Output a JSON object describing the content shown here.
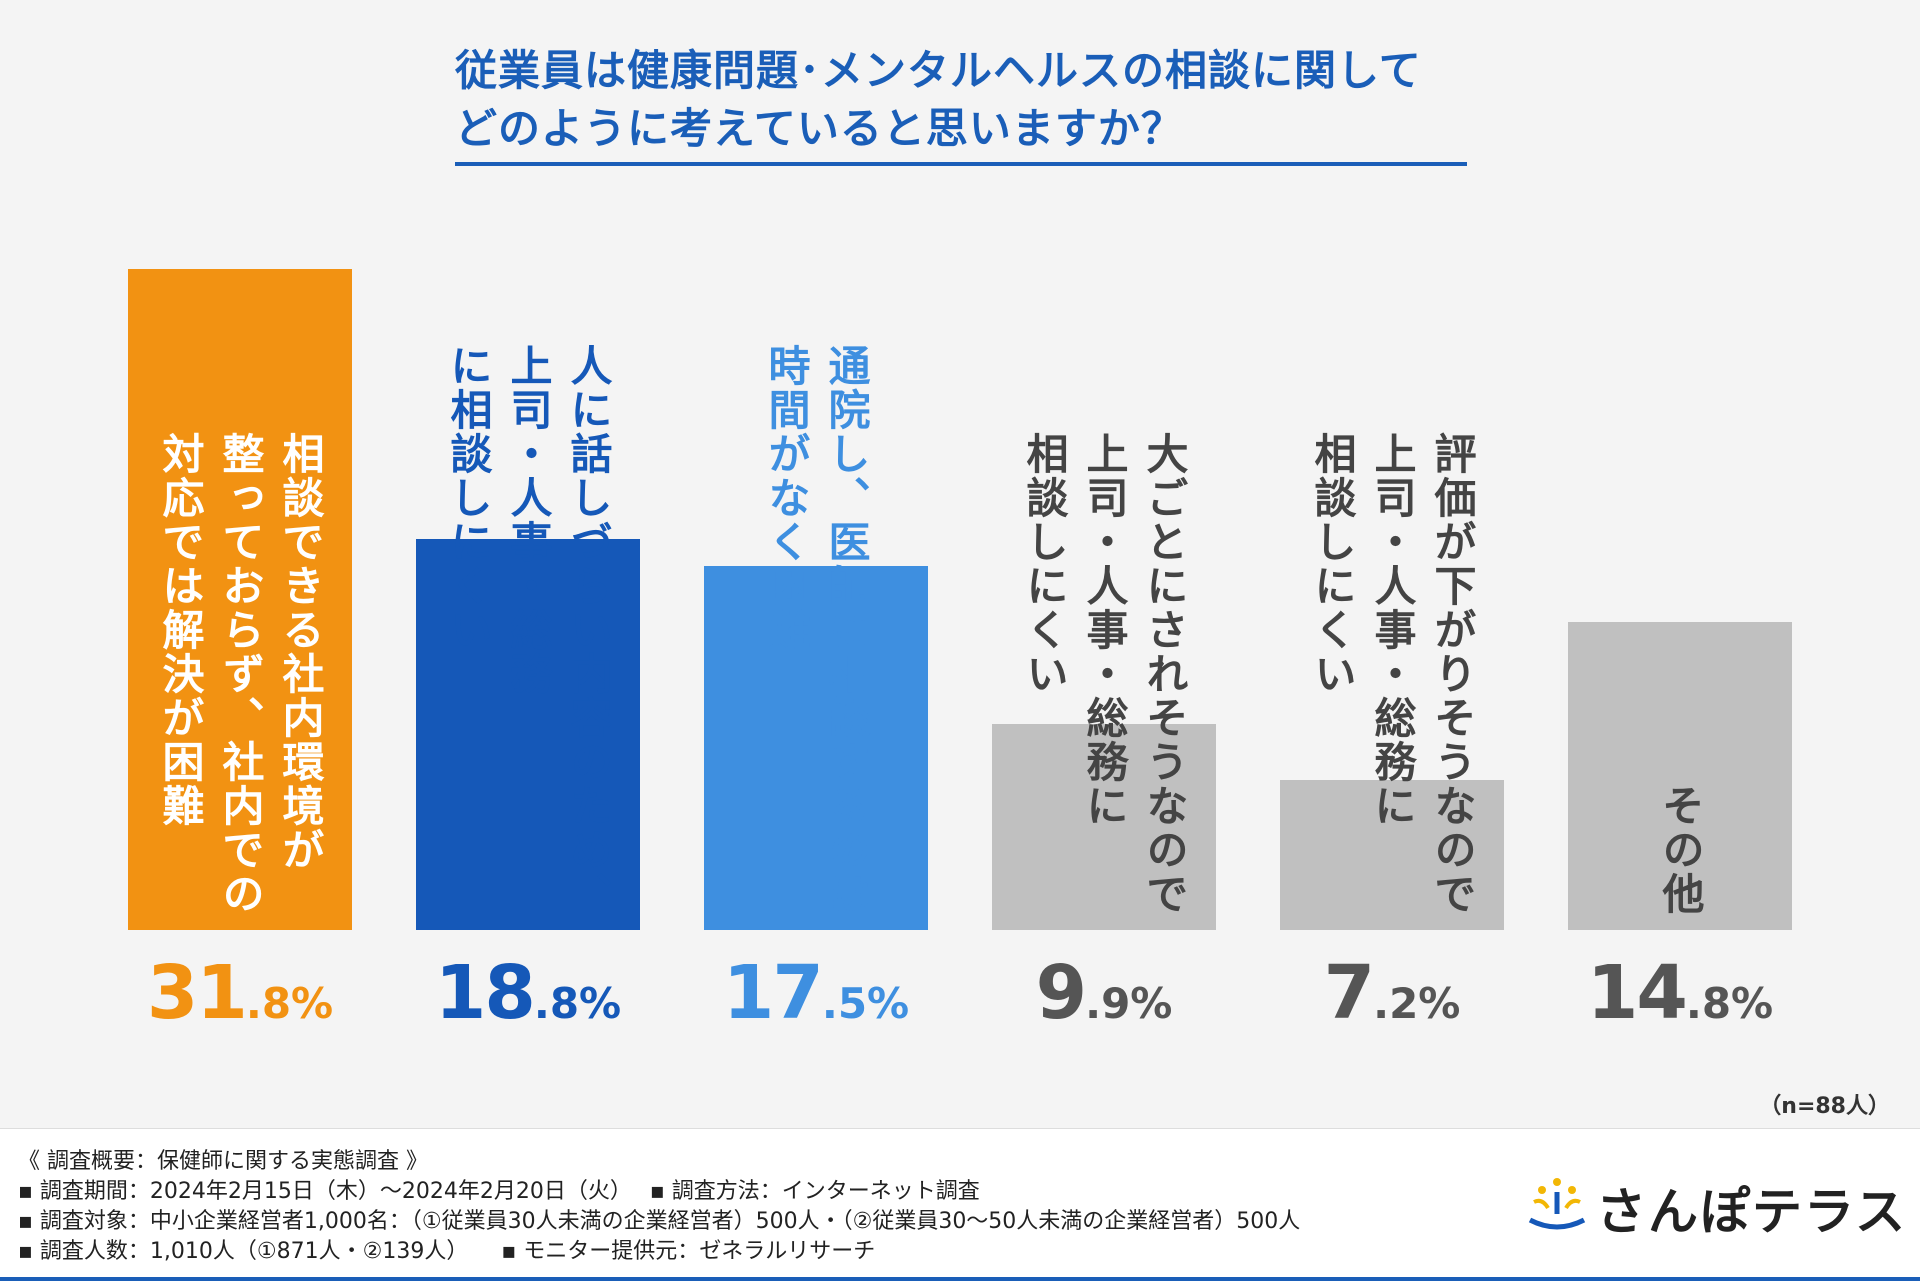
{
  "title": {
    "line1": "従業員は健康問題･メンタルヘルスの相談に関して",
    "line2": "どのように考えていると思いますか？"
  },
  "colors": {
    "title": "#1a5eb8",
    "orange": "#f29212",
    "dark_blue": "#1558b8",
    "light_blue": "#3e8fe0",
    "gray": "#c0c0c0"
  },
  "chart_data": {
    "type": "bar",
    "title": "従業員は健康問題･メンタルヘルスの相談に関して どのように考えていると思いますか？",
    "categories": [
      "相談できる社内環境が整っておらず、社内での対応では解決が困難",
      "人に話しづらい内容のため、上司・人事・総務に相談しにくい",
      "通院し、医師に相談するのは時間がなく困難",
      "大ごとにされそうなので上司・人事・総務に相談しにくい",
      "評価が下がりそうなので上司・人事・総務に相談しにくい",
      "その他"
    ],
    "values": [
      31.8,
      18.8,
      17.5,
      9.9,
      7.2,
      14.8
    ],
    "unit": "%",
    "xlabel": "",
    "ylabel": "",
    "ylim": [
      0,
      32
    ],
    "grid": false,
    "bars": [
      {
        "label_columns": [
          "相談できる社内環境が",
          "整っておらず、社内での",
          "対応では解決が困難"
        ],
        "big": "31",
        "small": ".8%",
        "color": "#f29212",
        "text_color": "#ffffff",
        "pct_color": "#f29212"
      },
      {
        "label_columns": [
          "人に話しづらい内容のため、",
          "上司・人事・総務",
          "に相談しにくい"
        ],
        "big": "18",
        "small": ".8%",
        "color": "#1558b8",
        "text_color": "#1558b8",
        "pct_color": "#1558b8"
      },
      {
        "label_columns": [
          "通院し、医師に相談するのは",
          "時間がなく困難"
        ],
        "big": "17",
        "small": ".5%",
        "color": "#3e8fe0",
        "text_color": "#3e8fe0",
        "pct_color": "#3e8fe0"
      },
      {
        "label_columns": [
          "大ごとにされそうなので",
          "上司・人事・総務に",
          "相談しにくい"
        ],
        "big": "9",
        "small": ".9%",
        "color": "#c0c0c0",
        "text_color": "#444444",
        "pct_color": "#555555"
      },
      {
        "label_columns": [
          "評価が下がりそうなので",
          "上司・人事・総務に",
          "相談しにくい"
        ],
        "big": "7",
        "small": ".2%",
        "color": "#c0c0c0",
        "text_color": "#444444",
        "pct_color": "#555555"
      },
      {
        "label_columns": [
          "その他"
        ],
        "big": "14",
        "small": ".8%",
        "color": "#c0c0c0",
        "text_color": "#444444",
        "pct_color": "#555555"
      }
    ]
  },
  "sample_note": "（n=88人）",
  "footer": {
    "line1": "《 調査概要：保健師に関する実態調査 》",
    "line2": "▪ 調査期間：2024年2月15日（木）～2024年2月20日（火）　 ▪ 調査方法：インターネット調査",
    "line3": "▪ 調査対象：中小企業経営者1,000名：（①従業員30人未満の企業経営者）500人・（②従業員30～50人未満の企業経営者）500人",
    "line4": "▪ 調査人数：1,010人（①871人・②139人）　　▪ モニター提供元：ゼネラルリサーチ"
  },
  "logo": {
    "text": "さんぽテラス",
    "icon": "people-stars-icon"
  }
}
